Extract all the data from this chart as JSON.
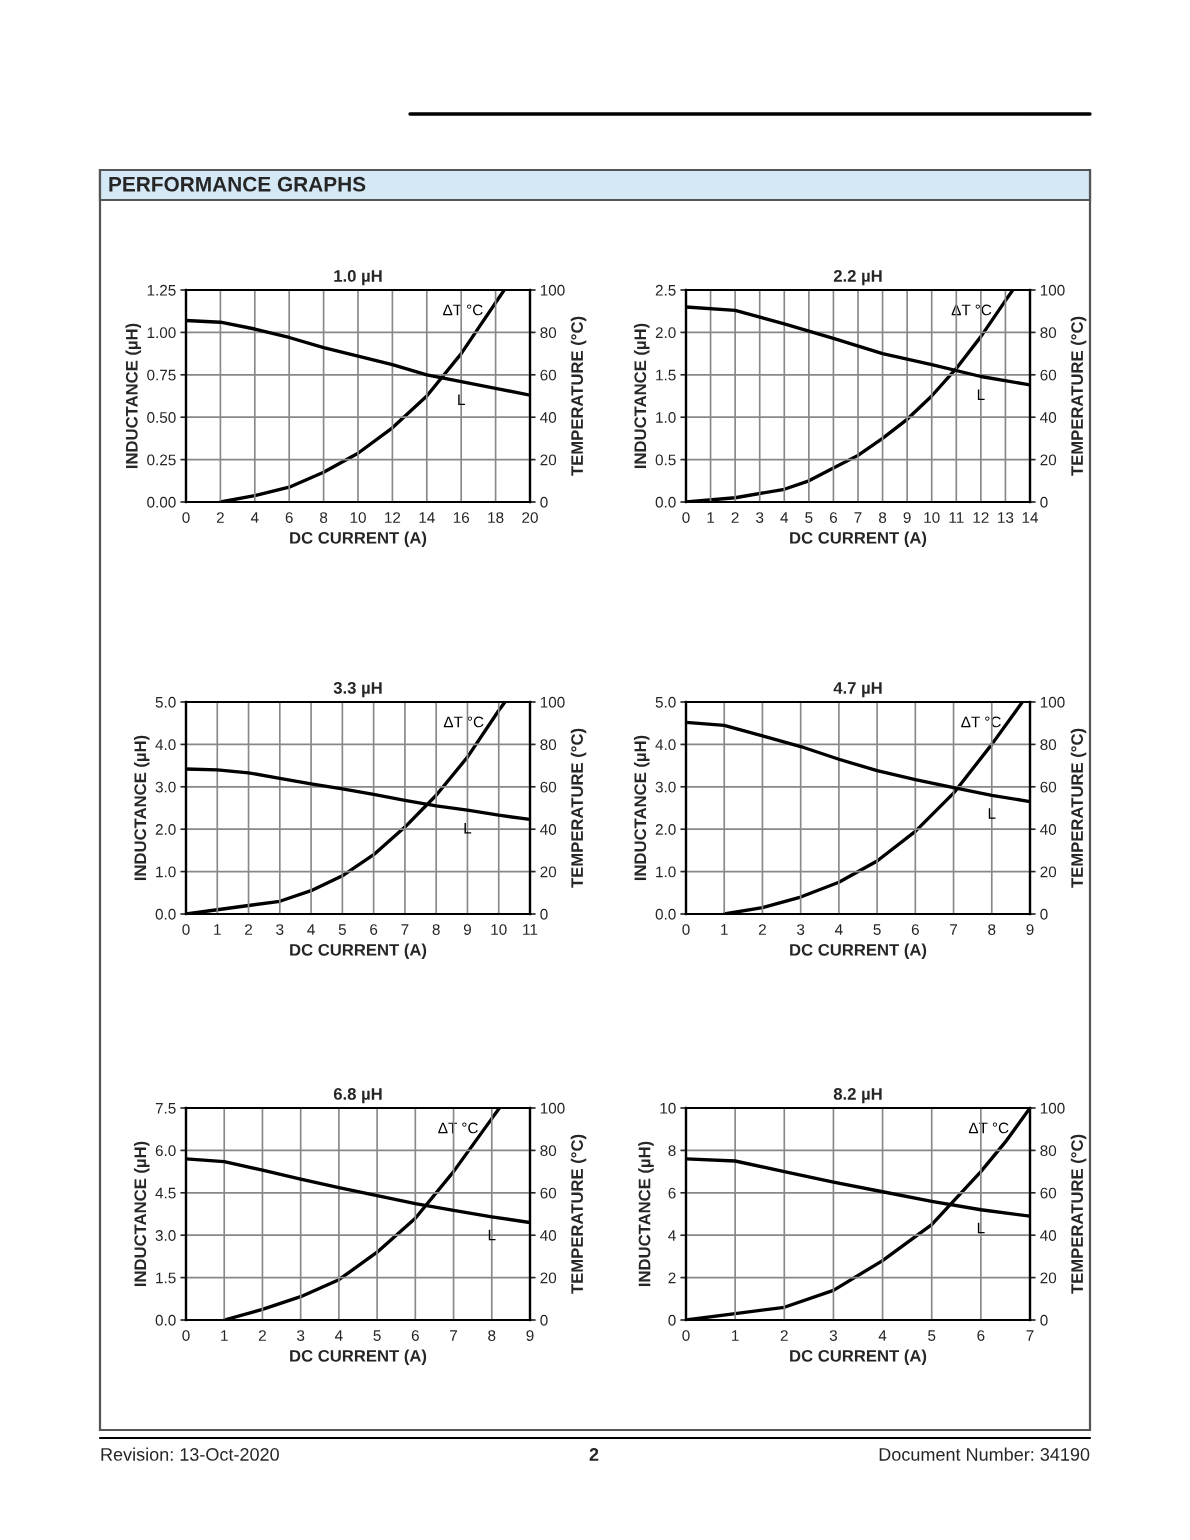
{
  "chart_data": [
    {
      "type": "line",
      "title": "1.0 µH",
      "xlabel": "DC CURRENT (A)",
      "ylabel": "INDUCTANCE (µH)",
      "y2label": "TEMPERATURE (°C)",
      "annotations": [
        "PERFORMANCE GRAPHS",
        "Revision: 13-Oct-2020",
        "2",
        "Document Number: 34190"
      ],
      "xlim": [
        0,
        20
      ],
      "xticks": [
        0,
        2,
        4,
        6,
        8,
        10,
        12,
        14,
        16,
        18,
        20
      ],
      "ylim": [
        0,
        1.25
      ],
      "yticks": [
        {
          "value": 0,
          "label": "0.00"
        },
        {
          "value": 0.25,
          "label": "0.25"
        },
        {
          "value": 0.5,
          "label": "0.50"
        },
        {
          "value": 0.75,
          "label": "0.75"
        },
        {
          "value": 1.0,
          "label": "1.00"
        },
        {
          "value": 1.25,
          "label": "1.25"
        }
      ],
      "y2lim": [
        0,
        100
      ],
      "y2ticks": [
        0,
        20,
        40,
        60,
        80,
        100
      ],
      "grid": true,
      "line_style": "solid",
      "marker": "none",
      "series": [
        {
          "name": "L",
          "color": "#000000",
          "x": [
            0,
            2,
            4,
            6,
            8,
            10,
            12,
            14,
            16,
            18,
            20
          ],
          "values": [
            1.07,
            1.06,
            1.02,
            0.97,
            0.91,
            0.86,
            0.81,
            0.75,
            0.71,
            0.67,
            0.63
          ]
        },
        {
          "name": "ΔT °C",
          "color": "#000000",
          "axis": "y2",
          "x": [
            2,
            4,
            6,
            8,
            10,
            12,
            14,
            16,
            17,
            18.5
          ],
          "values": [
            0,
            3,
            7,
            14,
            23,
            35,
            50,
            70,
            82,
            100
          ]
        }
      ]
    },
    {
      "type": "line",
      "title": "2.2 µH",
      "xlabel": "DC CURRENT (A)",
      "ylabel": "INDUCTANCE (µH)",
      "y2label": "TEMPERATURE (°C)",
      "xlim": [
        0,
        14
      ],
      "xticks": [
        0,
        1,
        2,
        3,
        4,
        5,
        6,
        7,
        8,
        9,
        10,
        11,
        12,
        13,
        14
      ],
      "ylim": [
        0,
        2.5
      ],
      "yticks": [
        {
          "value": 0,
          "label": "0.0"
        },
        {
          "value": 0.5,
          "label": "0.5"
        },
        {
          "value": 1.0,
          "label": "1.0"
        },
        {
          "value": 1.5,
          "label": "1.5"
        },
        {
          "value": 2.0,
          "label": "2.0"
        },
        {
          "value": 2.5,
          "label": "2.5"
        }
      ],
      "y2lim": [
        0,
        100
      ],
      "y2ticks": [
        0,
        20,
        40,
        60,
        80,
        100
      ],
      "grid": true,
      "line_style": "solid",
      "marker": "none",
      "series": [
        {
          "name": "L",
          "color": "#000000",
          "x": [
            0,
            2,
            4,
            6,
            8,
            10,
            12,
            14
          ],
          "values": [
            2.3,
            2.26,
            2.1,
            1.93,
            1.75,
            1.62,
            1.48,
            1.38
          ]
        },
        {
          "name": "ΔT °C",
          "color": "#000000",
          "axis": "y2",
          "x": [
            0,
            2,
            4,
            5,
            6,
            7,
            8,
            9,
            10,
            11,
            12,
            13,
            13.3
          ],
          "values": [
            0,
            2,
            6,
            10,
            16,
            22,
            30,
            39,
            50,
            63,
            78,
            95,
            100
          ]
        }
      ]
    },
    {
      "type": "line",
      "title": "3.3 µH",
      "xlabel": "DC CURRENT (A)",
      "ylabel": "INDUCTANCE (µH)",
      "y2label": "TEMPERATURE (°C)",
      "xlim": [
        0,
        11
      ],
      "xticks": [
        0,
        1,
        2,
        3,
        4,
        5,
        6,
        7,
        8,
        9,
        10,
        11
      ],
      "ylim": [
        0,
        5
      ],
      "yticks": [
        {
          "value": 0,
          "label": "0.0"
        },
        {
          "value": 1,
          "label": "1.0"
        },
        {
          "value": 2,
          "label": "2.0"
        },
        {
          "value": 3,
          "label": "3.0"
        },
        {
          "value": 4,
          "label": "4.0"
        },
        {
          "value": 5,
          "label": "5.0"
        }
      ],
      "y2lim": [
        0,
        100
      ],
      "y2ticks": [
        0,
        20,
        40,
        60,
        80,
        100
      ],
      "grid": true,
      "line_style": "solid",
      "marker": "none",
      "series": [
        {
          "name": "L",
          "color": "#000000",
          "x": [
            0,
            1,
            2,
            3,
            4,
            5,
            6,
            7,
            8,
            9,
            10,
            11
          ],
          "values": [
            3.42,
            3.4,
            3.33,
            3.2,
            3.07,
            2.95,
            2.82,
            2.68,
            2.55,
            2.45,
            2.33,
            2.23
          ]
        },
        {
          "name": "ΔT °C",
          "color": "#000000",
          "axis": "y2",
          "x": [
            0,
            1,
            2,
            3,
            4,
            5,
            6,
            7,
            8,
            9,
            10,
            10.2
          ],
          "values": [
            0,
            2,
            4,
            6,
            11,
            18,
            28,
            41,
            56,
            74,
            96,
            100
          ]
        }
      ]
    },
    {
      "type": "line",
      "title": "4.7 µH",
      "xlabel": "DC CURRENT (A)",
      "ylabel": "INDUCTANCE (µH)",
      "y2label": "TEMPERATURE (°C)",
      "xlim": [
        0,
        9
      ],
      "xticks": [
        0,
        1,
        2,
        3,
        4,
        5,
        6,
        7,
        8,
        9
      ],
      "ylim": [
        0,
        5
      ],
      "yticks": [
        {
          "value": 0,
          "label": "0.0"
        },
        {
          "value": 1,
          "label": "1.0"
        },
        {
          "value": 2,
          "label": "2.0"
        },
        {
          "value": 3,
          "label": "3.0"
        },
        {
          "value": 4,
          "label": "4.0"
        },
        {
          "value": 5,
          "label": "5.0"
        }
      ],
      "y2lim": [
        0,
        100
      ],
      "y2ticks": [
        0,
        20,
        40,
        60,
        80,
        100
      ],
      "grid": true,
      "line_style": "solid",
      "marker": "none",
      "series": [
        {
          "name": "L",
          "color": "#000000",
          "x": [
            0,
            1,
            2,
            3,
            4,
            5,
            6,
            7,
            8,
            9
          ],
          "values": [
            4.52,
            4.45,
            4.2,
            3.95,
            3.65,
            3.38,
            3.17,
            2.98,
            2.8,
            2.65
          ]
        },
        {
          "name": "ΔT °C",
          "color": "#000000",
          "axis": "y2",
          "x": [
            1,
            2,
            3,
            4,
            5,
            6,
            7,
            8,
            8.8
          ],
          "values": [
            0,
            3,
            8,
            15,
            25,
            39,
            57,
            80,
            100
          ]
        }
      ]
    },
    {
      "type": "line",
      "title": "6.8 µH",
      "xlabel": "DC CURRENT (A)",
      "ylabel": "INDUCTANCE (µH)",
      "y2label": "TEMPERATURE (°C)",
      "xlim": [
        0,
        9
      ],
      "xticks": [
        0,
        1,
        2,
        3,
        4,
        5,
        6,
        7,
        8,
        9
      ],
      "ylim": [
        0,
        7.5
      ],
      "yticks": [
        {
          "value": 0,
          "label": "0.0"
        },
        {
          "value": 1.5,
          "label": "1.5"
        },
        {
          "value": 3,
          "label": "3.0"
        },
        {
          "value": 4.5,
          "label": "4.5"
        },
        {
          "value": 6,
          "label": "6.0"
        },
        {
          "value": 7.5,
          "label": "7.5"
        }
      ],
      "y2lim": [
        0,
        100
      ],
      "y2ticks": [
        0,
        20,
        40,
        60,
        80,
        100
      ],
      "grid": true,
      "line_style": "solid",
      "marker": "none",
      "series": [
        {
          "name": "L",
          "color": "#000000",
          "x": [
            0,
            1,
            2,
            3,
            4,
            5,
            6,
            7,
            8,
            9
          ],
          "values": [
            5.7,
            5.6,
            5.3,
            4.98,
            4.68,
            4.4,
            4.12,
            3.88,
            3.65,
            3.45
          ]
        },
        {
          "name": "ΔT °C",
          "color": "#000000",
          "axis": "y2",
          "x": [
            1,
            2,
            3,
            4,
            5,
            6,
            7,
            8,
            8.2
          ],
          "values": [
            0,
            5,
            11,
            19,
            32,
            48,
            70,
            95,
            100
          ]
        }
      ]
    },
    {
      "type": "line",
      "title": "8.2 µH",
      "xlabel": "DC CURRENT (A)",
      "ylabel": "INDUCTANCE (µH)",
      "y2label": "TEMPERATURE (°C)",
      "xlim": [
        0,
        7
      ],
      "xticks": [
        0,
        1,
        2,
        3,
        4,
        5,
        6,
        7
      ],
      "ylim": [
        0,
        10
      ],
      "yticks": [
        0,
        2,
        4,
        6,
        8,
        10
      ],
      "y2lim": [
        0,
        100
      ],
      "y2ticks": [
        0,
        20,
        40,
        60,
        80,
        100
      ],
      "grid": true,
      "line_style": "solid",
      "marker": "none",
      "series": [
        {
          "name": "L",
          "color": "#000000",
          "x": [
            0,
            1,
            2,
            3,
            4,
            5,
            6,
            7
          ],
          "values": [
            7.6,
            7.5,
            7.0,
            6.5,
            6.05,
            5.6,
            5.2,
            4.9
          ]
        },
        {
          "name": "ΔT °C",
          "color": "#000000",
          "axis": "y2",
          "x": [
            0,
            1,
            2,
            3,
            4,
            5,
            6,
            6.5,
            7
          ],
          "values": [
            0,
            3,
            6,
            14,
            28,
            45,
            70,
            84,
            100
          ]
        }
      ]
    }
  ]
}
